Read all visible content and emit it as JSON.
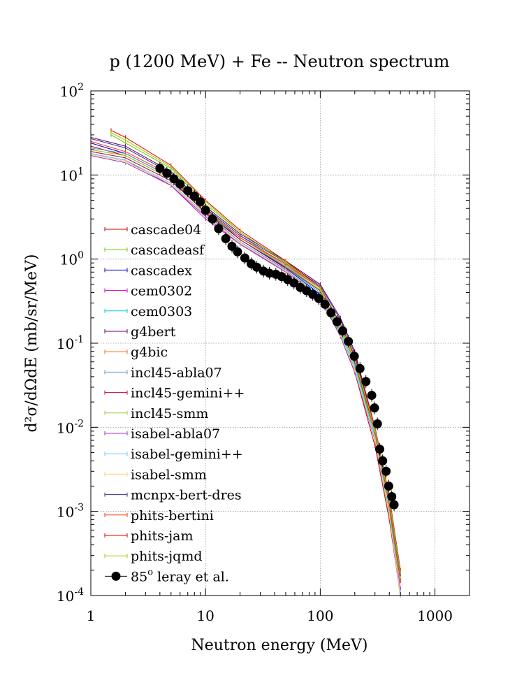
{
  "chart_data": {
    "type": "line",
    "title": "p (1200 MeV) + Fe -- Neutron spectrum",
    "xlabel": "Neutron energy (MeV)",
    "ylabel": "d²σ/dΩdE (mb/sr/MeV)",
    "xscale": "log",
    "yscale": "log",
    "xlim": [
      1,
      2000
    ],
    "ylim": [
      0.0001,
      100
    ],
    "x_ticks": [
      {
        "value": 1,
        "label": "1"
      },
      {
        "value": 10,
        "label": "10"
      },
      {
        "value": 100,
        "label": "100"
      },
      {
        "value": 1000,
        "label": "1000"
      }
    ],
    "y_ticks": [
      {
        "value": 100,
        "base": "10",
        "exp": "2"
      },
      {
        "value": 10,
        "base": "10",
        "exp": "1"
      },
      {
        "value": 1,
        "base": "10",
        "exp": "0"
      },
      {
        "value": 0.1,
        "base": "10",
        "exp": "-1"
      },
      {
        "value": 0.01,
        "base": "10",
        "exp": "-2"
      },
      {
        "value": 0.001,
        "base": "10",
        "exp": "-3"
      },
      {
        "value": 0.0001,
        "base": "10",
        "exp": "-4"
      }
    ],
    "grid": true,
    "legend_position": "left",
    "series": [
      {
        "name": "cascade04",
        "color": "#cc0000",
        "x": [
          1,
          2,
          5,
          10,
          20,
          50,
          100,
          150,
          200,
          300,
          400,
          500
        ],
        "y": [
          22,
          17,
          9,
          3.5,
          1.6,
          0.75,
          0.35,
          0.12,
          0.045,
          0.006,
          0.0008,
          0.0001
        ]
      },
      {
        "name": "cascadeasf",
        "color": "#66cc00",
        "x": [
          1.5,
          2,
          5,
          10,
          20,
          50,
          100,
          150,
          200,
          300,
          400,
          500
        ],
        "y": [
          30,
          24,
          12,
          4.5,
          2.1,
          0.9,
          0.45,
          0.16,
          0.06,
          0.008,
          0.001,
          0.0002
        ]
      },
      {
        "name": "cascadex",
        "color": "#0000cc",
        "x": [
          1,
          2,
          5,
          10,
          20,
          50,
          100,
          150,
          200,
          300,
          400,
          500
        ],
        "y": [
          24,
          18,
          9.5,
          3.8,
          1.7,
          0.78,
          0.38,
          0.13,
          0.05,
          0.007,
          0.0009,
          0.00012
        ]
      },
      {
        "name": "cem0302",
        "color": "#cc00cc",
        "x": [
          1,
          2,
          5,
          10,
          20,
          50,
          100,
          150,
          200,
          300,
          400,
          500
        ],
        "y": [
          18,
          15,
          7.5,
          3.0,
          1.5,
          0.72,
          0.36,
          0.13,
          0.05,
          0.007,
          0.0009,
          0.00012
        ]
      },
      {
        "name": "cem0303",
        "color": "#00cccc",
        "x": [
          1,
          2,
          5,
          10,
          20,
          50,
          100,
          150,
          200,
          300,
          400,
          500
        ],
        "y": [
          19,
          16,
          8.5,
          3.6,
          1.8,
          0.8,
          0.4,
          0.14,
          0.055,
          0.008,
          0.001,
          0.00015
        ]
      },
      {
        "name": "g4bert",
        "color": "#660066",
        "x": [
          1,
          2,
          5,
          10,
          20,
          50,
          100,
          150,
          200,
          300,
          400,
          500
        ],
        "y": [
          28,
          22,
          11,
          4.2,
          2.0,
          0.95,
          0.5,
          0.2,
          0.08,
          0.01,
          0.0015,
          0.0002
        ]
      },
      {
        "name": "g4bic",
        "color": "#ff6600",
        "x": [
          1,
          2,
          5,
          10,
          20,
          50,
          100,
          150,
          200,
          300,
          400,
          500
        ],
        "y": [
          20,
          17,
          9,
          3.8,
          1.8,
          0.85,
          0.42,
          0.15,
          0.06,
          0.009,
          0.0012,
          0.00015
        ]
      },
      {
        "name": "incl45-abla07",
        "color": "#6699cc",
        "x": [
          1,
          2,
          5,
          10,
          20,
          50,
          100,
          150,
          200,
          300,
          400,
          500
        ],
        "y": [
          21,
          18,
          9.5,
          4.0,
          1.9,
          0.85,
          0.45,
          0.16,
          0.065,
          0.01,
          0.0013,
          0.00018
        ]
      },
      {
        "name": "incl45-gemini++",
        "color": "#cc0033",
        "x": [
          1,
          2,
          5,
          10,
          20,
          50,
          100,
          150,
          200,
          300,
          400,
          500
        ],
        "y": [
          19,
          16,
          8.5,
          3.6,
          1.7,
          0.8,
          0.42,
          0.15,
          0.06,
          0.009,
          0.0012,
          0.00015
        ]
      },
      {
        "name": "incl45-smm",
        "color": "#99cc33",
        "x": [
          1,
          2,
          5,
          10,
          20,
          50,
          100,
          150,
          200,
          300,
          400,
          500
        ],
        "y": [
          20,
          17,
          9,
          3.8,
          1.8,
          0.82,
          0.43,
          0.15,
          0.062,
          0.0095,
          0.0012,
          0.00016
        ]
      },
      {
        "name": "isabel-abla07",
        "color": "#9933cc",
        "x": [
          1,
          2,
          5,
          10,
          20,
          50,
          100,
          150,
          200,
          300,
          400,
          500
        ],
        "y": [
          17,
          14,
          7.5,
          3.2,
          1.5,
          0.7,
          0.35,
          0.12,
          0.045,
          0.007,
          0.0009,
          0.0001
        ]
      },
      {
        "name": "isabel-gemini++",
        "color": "#66ccff",
        "x": [
          1,
          2,
          5,
          10,
          20,
          50,
          100,
          150,
          200,
          300,
          400,
          500
        ],
        "y": [
          18,
          15,
          8,
          3.4,
          1.6,
          0.74,
          0.37,
          0.13,
          0.05,
          0.0075,
          0.00095,
          0.00011
        ]
      },
      {
        "name": "isabel-smm",
        "color": "#ffcc66",
        "x": [
          1,
          2,
          5,
          10,
          20,
          50,
          100,
          150,
          200,
          300,
          400,
          500
        ],
        "y": [
          17.5,
          14.5,
          7.8,
          3.3,
          1.55,
          0.72,
          0.36,
          0.125,
          0.048,
          0.0072,
          0.0009,
          0.0001
        ]
      },
      {
        "name": "mcnpx-bert-dres",
        "color": "#333399",
        "x": [
          1,
          2,
          5,
          10,
          20,
          50,
          100,
          150,
          200,
          300,
          400,
          500
        ],
        "y": [
          27,
          21,
          10.5,
          4.0,
          1.9,
          0.92,
          0.48,
          0.19,
          0.075,
          0.0095,
          0.0014,
          0.00018
        ]
      },
      {
        "name": "phits-bertini",
        "color": "#ff3300",
        "x": [
          1,
          2,
          5,
          10,
          20,
          50,
          100,
          150,
          200,
          300,
          400,
          500
        ],
        "y": [
          25,
          19,
          10,
          3.9,
          1.8,
          0.88,
          0.45,
          0.17,
          0.068,
          0.009,
          0.0012,
          0.00015
        ]
      },
      {
        "name": "phits-jam",
        "color": "#dd0000",
        "x": [
          1.5,
          2,
          5,
          10,
          20,
          50,
          100,
          150,
          200,
          300,
          400,
          500
        ],
        "y": [
          34,
          28,
          13,
          5.0,
          2.2,
          0.95,
          0.46,
          0.17,
          0.07,
          0.01,
          0.0015,
          0.0002
        ]
      },
      {
        "name": "phits-jqmd",
        "color": "#99cc00",
        "x": [
          1.5,
          2,
          5,
          10,
          20,
          50,
          100,
          150,
          200,
          300,
          400,
          500
        ],
        "y": [
          32,
          26,
          12.5,
          4.8,
          2.1,
          0.92,
          0.45,
          0.16,
          0.065,
          0.0095,
          0.0014,
          0.00019
        ]
      }
    ],
    "experimental": {
      "name": "85° leray et al.",
      "legend_main": "85",
      "legend_sup": "o",
      "legend_rest": " leray et al.",
      "color": "#000000",
      "x": [
        4,
        4.6,
        5.3,
        6,
        7,
        8,
        9,
        10,
        11.5,
        13,
        15,
        17,
        19,
        22,
        25,
        28,
        32,
        36,
        41,
        46,
        52,
        59,
        67,
        76,
        86,
        97,
        110,
        124,
        140,
        157,
        176,
        198,
        222,
        250,
        281,
        297,
        315,
        330,
        350,
        375,
        395,
        420,
        440
      ],
      "y": [
        12,
        10.5,
        9,
        7.8,
        6.5,
        5.6,
        4.8,
        3.8,
        3.0,
        2.3,
        1.75,
        1.42,
        1.22,
        1.03,
        0.88,
        0.8,
        0.72,
        0.68,
        0.66,
        0.62,
        0.57,
        0.52,
        0.46,
        0.42,
        0.38,
        0.34,
        0.29,
        0.23,
        0.18,
        0.14,
        0.105,
        0.07,
        0.05,
        0.035,
        0.024,
        0.017,
        0.011,
        0.0055,
        0.004,
        0.003,
        0.002,
        0.0015,
        0.0012
      ]
    }
  }
}
